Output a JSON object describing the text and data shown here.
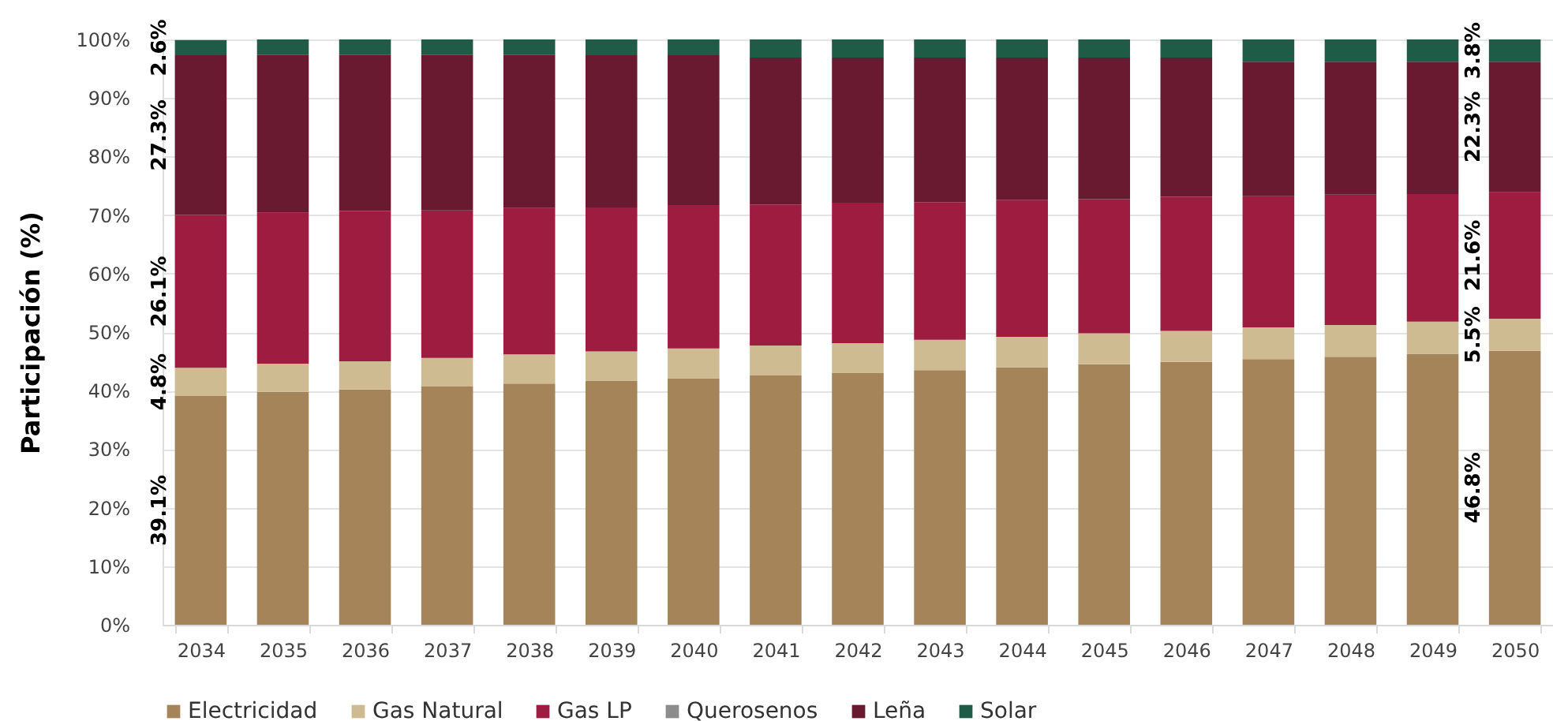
{
  "chart_data": {
    "type": "bar",
    "stacked": true,
    "ylabel": "Participación (%)",
    "categories": [
      "2034",
      "2035",
      "2036",
      "2037",
      "2038",
      "2039",
      "2040",
      "2041",
      "2042",
      "2043",
      "2044",
      "2045",
      "2046",
      "2047",
      "2048",
      "2049",
      "2050"
    ],
    "ylim": [
      0,
      100
    ],
    "yticks": [
      {
        "value": 0,
        "label": "0%"
      },
      {
        "value": 10,
        "label": "10%"
      },
      {
        "value": 20,
        "label": "20%"
      },
      {
        "value": 30,
        "label": "30%"
      },
      {
        "value": 40,
        "label": "40%"
      },
      {
        "value": 50,
        "label": "50%"
      },
      {
        "value": 60,
        "label": "60%"
      },
      {
        "value": 70,
        "label": "70%"
      },
      {
        "value": 80,
        "label": "80%"
      },
      {
        "value": 90,
        "label": "90%"
      },
      {
        "value": 100,
        "label": "100%"
      }
    ],
    "grid": "y",
    "legend": "bottom",
    "series": [
      {
        "name": "Electricidad",
        "color": "#a6845a",
        "values": [
          39.1,
          39.8,
          40.2,
          40.7,
          41.2,
          41.7,
          42.1,
          42.6,
          43.0,
          43.5,
          44.0,
          44.5,
          44.9,
          45.4,
          45.8,
          46.3,
          46.8
        ],
        "value_labels": [
          "39.1%",
          null,
          null,
          null,
          null,
          null,
          null,
          null,
          null,
          null,
          null,
          null,
          null,
          null,
          null,
          null,
          "46.8%"
        ]
      },
      {
        "name": "Gas Natural",
        "color": "#cfbb92",
        "values": [
          4.8,
          4.8,
          4.8,
          4.9,
          5.0,
          5.0,
          5.1,
          5.1,
          5.1,
          5.2,
          5.2,
          5.3,
          5.3,
          5.4,
          5.4,
          5.5,
          5.5
        ],
        "value_labels": [
          "4.8%",
          null,
          null,
          null,
          null,
          null,
          null,
          null,
          null,
          null,
          null,
          null,
          null,
          null,
          null,
          null,
          "5.5%"
        ]
      },
      {
        "name": "Gas LP",
        "color": "#9e1c40",
        "values": [
          26.1,
          25.8,
          25.7,
          25.2,
          25.0,
          24.6,
          24.5,
          24.1,
          24.0,
          23.5,
          23.4,
          22.9,
          22.9,
          22.4,
          22.3,
          21.8,
          21.6
        ],
        "value_labels": [
          "26.1%",
          null,
          null,
          null,
          null,
          null,
          null,
          null,
          null,
          null,
          null,
          null,
          null,
          null,
          null,
          null,
          "21.6%"
        ]
      },
      {
        "name": "Querosenos",
        "color": "#8c8c8c",
        "values": [
          0,
          0,
          0,
          0,
          0,
          0,
          0,
          0,
          0,
          0,
          0,
          0,
          0,
          0,
          0,
          0,
          0
        ]
      },
      {
        "name": "Leña",
        "color": "#6a1a30",
        "values": [
          27.3,
          27.0,
          26.7,
          26.6,
          26.2,
          26.0,
          25.6,
          25.1,
          24.8,
          24.7,
          24.3,
          24.2,
          23.8,
          23.0,
          22.7,
          22.6,
          22.3
        ],
        "value_labels": [
          "27.3%",
          null,
          null,
          null,
          null,
          null,
          null,
          null,
          null,
          null,
          null,
          null,
          null,
          null,
          null,
          null,
          "22.3%"
        ]
      },
      {
        "name": "Solar",
        "color": "#1f5c48",
        "values": [
          2.6,
          2.6,
          2.6,
          2.6,
          2.6,
          2.7,
          2.7,
          3.1,
          3.1,
          3.1,
          3.1,
          3.1,
          3.1,
          3.8,
          3.8,
          3.8,
          3.8
        ],
        "value_labels": [
          "2.6%",
          null,
          null,
          null,
          null,
          null,
          null,
          null,
          null,
          null,
          null,
          null,
          null,
          null,
          null,
          null,
          "3.8%"
        ]
      }
    ]
  }
}
